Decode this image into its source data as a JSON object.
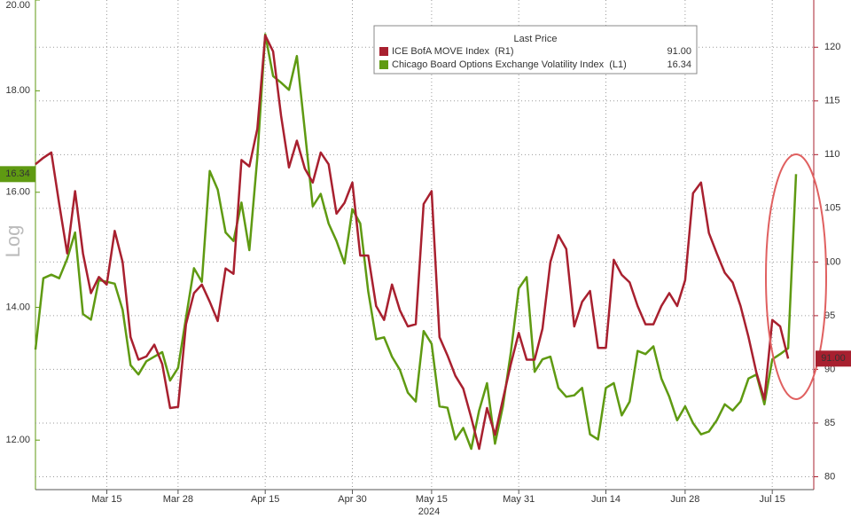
{
  "chart_data": {
    "type": "line",
    "legend_title": "Last Price",
    "ylabel": "Log",
    "xlabel": "2024",
    "log_y": true,
    "grid": true,
    "categories": [
      null,
      null,
      null,
      null,
      null,
      null,
      null,
      null,
      null,
      "Mar 15",
      null,
      null,
      null,
      null,
      null,
      null,
      null,
      null,
      "Mar 28",
      null,
      null,
      null,
      null,
      null,
      null,
      null,
      null,
      null,
      null,
      "Apr 15",
      null,
      null,
      null,
      null,
      null,
      null,
      null,
      null,
      null,
      null,
      "Apr 30",
      null,
      null,
      null,
      null,
      null,
      null,
      null,
      null,
      null,
      "May 15",
      null,
      null,
      null,
      null,
      null,
      null,
      null,
      null,
      null,
      null,
      "May 31",
      null,
      null,
      null,
      null,
      null,
      null,
      null,
      null,
      null,
      null,
      "Jun 14",
      null,
      null,
      null,
      null,
      null,
      null,
      null,
      null,
      null,
      "Jun 28",
      null,
      null,
      null,
      null,
      null,
      null,
      null,
      null,
      null,
      null,
      "Jul 15",
      null,
      null,
      null
    ],
    "ylim": [
      11.33,
      20
    ],
    "yticks": [
      {
        "value": 12,
        "label": "12.00"
      },
      {
        "value": 14,
        "label": "14.00"
      },
      {
        "value": 16,
        "label": "16.00"
      },
      {
        "value": 18,
        "label": "18.00"
      },
      {
        "value": 20,
        "label": "20.00"
      }
    ],
    "y2lim": [
      78.8,
      124.4
    ],
    "y2ticks": [
      80,
      85,
      90,
      95,
      100,
      105,
      110,
      115,
      120
    ],
    "series": [
      {
        "name": "ICE BofA MOVE Index  (R1)",
        "last_price": "91.00",
        "color": "#a8202f",
        "axis": "y2",
        "values": [
          109.1,
          109.7,
          110.2,
          105.4,
          100.8,
          106.6,
          100.8,
          97.1,
          98.6,
          97.9,
          102.9,
          100.0,
          93.0,
          90.9,
          91.2,
          92.3,
          90.5,
          86.4,
          86.5,
          94.2,
          97.1,
          97.9,
          96.3,
          94.5,
          99.4,
          98.9,
          109.5,
          108.9,
          112.4,
          121.1,
          119.6,
          113.6,
          108.8,
          111.3,
          108.7,
          107.4,
          110.2,
          109.1,
          104.5,
          105.5,
          107.4,
          100.6,
          100.6,
          95.9,
          94.6,
          97.9,
          95.5,
          94.0,
          94.2,
          105.4,
          106.6,
          93.0,
          91.3,
          89.4,
          88.2,
          85.5,
          82.6,
          86.4,
          83.9,
          87.2,
          90.5,
          93.4,
          90.9,
          90.9,
          93.8,
          100.0,
          102.5,
          101.2,
          94.0,
          96.3,
          97.3,
          92.0,
          92.0,
          100.2,
          98.8,
          98.1,
          95.9,
          94.2,
          94.2,
          95.9,
          97.1,
          95.9,
          98.3,
          106.4,
          107.4,
          102.7,
          100.8,
          99.0,
          98.1,
          95.9,
          93.0,
          89.7,
          87.2,
          94.6,
          94.0,
          91.0,
          null
        ]
      },
      {
        "name": "Chicago Board Options Exchange Volatility Index  (L1)",
        "last_price": "16.34",
        "color": "#5f9a12",
        "axis": "y",
        "values": [
          13.33,
          14.48,
          14.54,
          14.48,
          14.81,
          15.27,
          13.89,
          13.8,
          14.45,
          14.42,
          14.39,
          13.96,
          13.09,
          12.95,
          13.15,
          13.22,
          13.29,
          12.86,
          13.05,
          13.83,
          14.65,
          14.42,
          16.4,
          16.05,
          15.27,
          15.12,
          15.81,
          14.96,
          16.66,
          19.22,
          18.31,
          18.17,
          18.02,
          18.74,
          17.18,
          15.74,
          15.97,
          15.43,
          15.12,
          14.73,
          15.69,
          15.43,
          14.26,
          13.49,
          13.52,
          13.22,
          13.02,
          12.68,
          12.55,
          13.62,
          13.42,
          12.48,
          12.46,
          12.01,
          12.17,
          11.88,
          12.42,
          12.82,
          11.95,
          12.48,
          13.29,
          14.31,
          14.5,
          12.99,
          13.18,
          13.22,
          12.75,
          12.62,
          12.64,
          12.75,
          12.08,
          12.01,
          12.75,
          12.82,
          12.35,
          12.55,
          13.31,
          13.26,
          13.38,
          12.89,
          12.62,
          12.28,
          12.48,
          12.24,
          12.08,
          12.12,
          12.28,
          12.51,
          12.42,
          12.55,
          12.89,
          12.95,
          12.51,
          13.18,
          13.26,
          13.35,
          16.34
        ]
      }
    ]
  }
}
